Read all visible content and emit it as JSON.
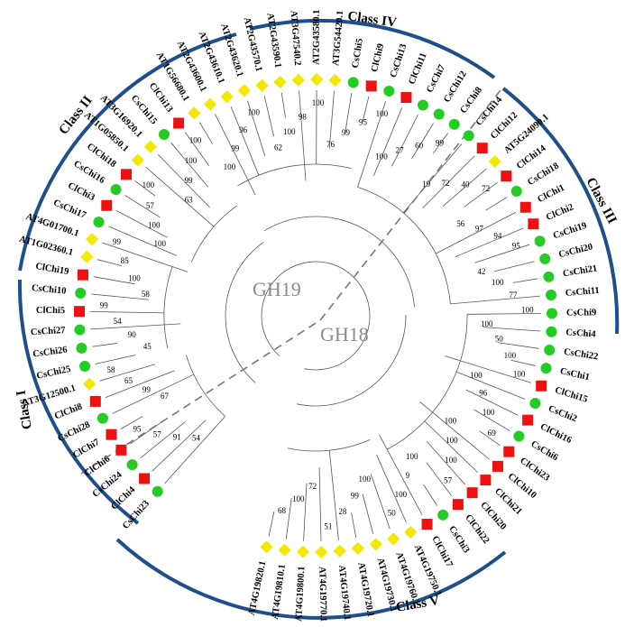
{
  "families": {
    "gh19": "GH19",
    "gh18": "GH18"
  },
  "classes": [
    {
      "id": "class-i",
      "label": "Class I"
    },
    {
      "id": "class-ii",
      "label": "Class II"
    },
    {
      "id": "class-iii",
      "label": "Class III"
    },
    {
      "id": "class-iv",
      "label": "Class IV"
    },
    {
      "id": "class-v",
      "label": "Class V"
    }
  ],
  "species_markers": {
    "Cucumis sativus": {
      "shape": "circle",
      "color": "#22cc22"
    },
    "Citrullus lanatus": {
      "shape": "square",
      "color": "#ee1111"
    },
    "Arabidopsis thaliana": {
      "shape": "diamond",
      "color": "#f4e800"
    }
  },
  "leaves": [
    {
      "label": "CsChi23",
      "marker": "circle"
    },
    {
      "label": "ClChi4",
      "marker": "square"
    },
    {
      "label": "CsChi24",
      "marker": "circle"
    },
    {
      "label": "ClChi6",
      "marker": "square"
    },
    {
      "label": "ClChi7",
      "marker": "square"
    },
    {
      "label": "CsChi28",
      "marker": "circle"
    },
    {
      "label": "ClChi8",
      "marker": "square"
    },
    {
      "label": "AT3G12500.1",
      "marker": "diamond"
    },
    {
      "label": "CsChi25",
      "marker": "circle"
    },
    {
      "label": "CsChi26",
      "marker": "circle"
    },
    {
      "label": "CsChi27",
      "marker": "circle"
    },
    {
      "label": "ClChi5",
      "marker": "square"
    },
    {
      "label": "CsChi10",
      "marker": "circle"
    },
    {
      "label": "ClChi19",
      "marker": "square"
    },
    {
      "label": "AT1G02360.1",
      "marker": "diamond"
    },
    {
      "label": "AT4G01700.1",
      "marker": "diamond"
    },
    {
      "label": "CsChi17",
      "marker": "circle"
    },
    {
      "label": "ClChi3",
      "marker": "square"
    },
    {
      "label": "CsChi16",
      "marker": "circle"
    },
    {
      "label": "ClChi18",
      "marker": "square"
    },
    {
      "label": "AT1G05850.1",
      "marker": "diamond"
    },
    {
      "label": "AT3G16920.1",
      "marker": "diamond"
    },
    {
      "label": "CsChi15",
      "marker": "circle"
    },
    {
      "label": "ClChi13",
      "marker": "square"
    },
    {
      "label": "AT1G56680.1",
      "marker": "diamond"
    },
    {
      "label": "AT2G43600.1",
      "marker": "diamond"
    },
    {
      "label": "AT2G43610.1",
      "marker": "diamond"
    },
    {
      "label": "AT2G43620.1",
      "marker": "diamond"
    },
    {
      "label": "AT2G43570.1",
      "marker": "diamond"
    },
    {
      "label": "AT2G43590.1",
      "marker": "diamond"
    },
    {
      "label": "AT3G47540.2",
      "marker": "diamond"
    },
    {
      "label": "AT2G43580.1",
      "marker": "diamond"
    },
    {
      "label": "AT3G54420.1",
      "marker": "diamond"
    },
    {
      "label": "CsChi5",
      "marker": "circle"
    },
    {
      "label": "ClChi9",
      "marker": "square"
    },
    {
      "label": "CsChi13",
      "marker": "circle"
    },
    {
      "label": "ClChi11",
      "marker": "square"
    },
    {
      "label": "CsChi7",
      "marker": "circle"
    },
    {
      "label": "CsChi12",
      "marker": "circle"
    },
    {
      "label": "CsChi8",
      "marker": "circle"
    },
    {
      "label": "CsChi14",
      "marker": "circle"
    },
    {
      "label": "ClChi12",
      "marker": "square"
    },
    {
      "label": "AT5G24090.1",
      "marker": "diamond"
    },
    {
      "label": "ClChi14",
      "marker": "square"
    },
    {
      "label": "CsChi18",
      "marker": "circle"
    },
    {
      "label": "ClChi1",
      "marker": "square"
    },
    {
      "label": "ClChi2",
      "marker": "square"
    },
    {
      "label": "CsChi19",
      "marker": "circle"
    },
    {
      "label": "CsChi20",
      "marker": "circle"
    },
    {
      "label": "CsChi21",
      "marker": "circle"
    },
    {
      "label": "CsChi11",
      "marker": "circle"
    },
    {
      "label": "CsChi9",
      "marker": "circle"
    },
    {
      "label": "CsChi4",
      "marker": "circle"
    },
    {
      "label": "CsChi22",
      "marker": "circle"
    },
    {
      "label": "CsChi1",
      "marker": "circle"
    },
    {
      "label": "ClChi15",
      "marker": "square"
    },
    {
      "label": "CsChi2",
      "marker": "circle"
    },
    {
      "label": "ClChi16",
      "marker": "square"
    },
    {
      "label": "CsChi6",
      "marker": "circle"
    },
    {
      "label": "ClChi23",
      "marker": "square"
    },
    {
      "label": "ClChi10",
      "marker": "square"
    },
    {
      "label": "ClChi21",
      "marker": "square"
    },
    {
      "label": "ClChi20",
      "marker": "square"
    },
    {
      "label": "ClChi22",
      "marker": "square"
    },
    {
      "label": "CsChi3",
      "marker": "circle"
    },
    {
      "label": "ClChi17",
      "marker": "square"
    },
    {
      "label": "AT4G19750.1",
      "marker": "diamond"
    },
    {
      "label": "AT4G19760.1",
      "marker": "diamond"
    },
    {
      "label": "AT4G19730.1",
      "marker": "diamond"
    },
    {
      "label": "AT4G19720.1",
      "marker": "diamond"
    },
    {
      "label": "AT4G19740.1",
      "marker": "diamond"
    },
    {
      "label": "AT4G19770.1",
      "marker": "diamond"
    },
    {
      "label": "AT4G19800.1",
      "marker": "diamond"
    },
    {
      "label": "AT4G19810.1",
      "marker": "diamond"
    },
    {
      "label": "AT4G19820.1",
      "marker": "diamond"
    }
  ],
  "bootstrap_values": [
    "54",
    "91",
    "57",
    "95",
    "67",
    "99",
    "65",
    "58",
    "45",
    "90",
    "54",
    "99",
    "58",
    "100",
    "85",
    "99",
    "100",
    "100",
    "57",
    "100",
    "63",
    "99",
    "100",
    "100",
    "100",
    "99",
    "96",
    "100",
    "62",
    "100",
    "98",
    "100",
    "76",
    "99",
    "95",
    "100",
    "100",
    "27",
    "60",
    "99",
    "19",
    "72",
    "40",
    "72",
    "56",
    "97",
    "94",
    "95",
    "42",
    "100",
    "77",
    "100",
    "100",
    "50",
    "100",
    "100",
    "100",
    "96",
    "100",
    "69",
    "100",
    "100",
    "100",
    "57",
    "100",
    "9",
    "100",
    "50",
    "100",
    "99",
    "28",
    "51",
    "72",
    "100",
    "68"
  ]
}
